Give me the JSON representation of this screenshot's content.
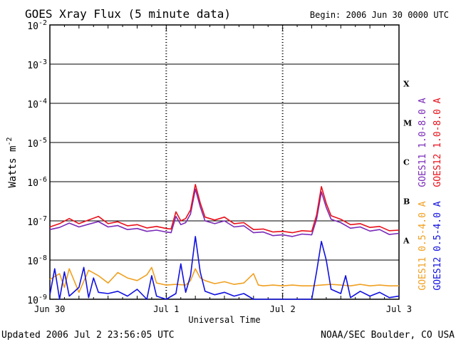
{
  "chart_data": {
    "type": "line",
    "title": "GOES Xray Flux (5 minute data)",
    "begin_label": "Begin:  2006 Jun 30 0000 UTC",
    "xlabel": "Universal Time",
    "ylabel": "Watts m",
    "ylabel_exponent": "-2",
    "yscale": "log",
    "ylim": [
      1e-09,
      0.01
    ],
    "xlim_hours": [
      0,
      72
    ],
    "x_ticks": [
      "Jun 30",
      "Jul 1",
      "Jul 2",
      "Jul 3"
    ],
    "y_ticks": [
      {
        "base": "10",
        "exp": "-2",
        "value": 0.01
      },
      {
        "base": "10",
        "exp": "-3",
        "value": 0.001
      },
      {
        "base": "10",
        "exp": "-4",
        "value": 0.0001
      },
      {
        "base": "10",
        "exp": "-5",
        "value": 1e-05
      },
      {
        "base": "10",
        "exp": "-6",
        "value": 1e-06
      },
      {
        "base": "10",
        "exp": "-7",
        "value": 1e-07
      },
      {
        "base": "10",
        "exp": "-8",
        "value": 1e-08
      },
      {
        "base": "10",
        "exp": "-9",
        "value": 1e-09
      }
    ],
    "flare_classes": [
      {
        "label": "X",
        "value": 0.000316
      },
      {
        "label": "M",
        "value": 3.16e-05
      },
      {
        "label": "C",
        "value": 3.16e-06
      },
      {
        "label": "B",
        "value": 3.16e-07
      },
      {
        "label": "A",
        "value": 3.16e-08
      }
    ],
    "grid": "horizontal lines at each decade from 1e-8 to 1e-2; vertical dotted lines at day boundaries",
    "series": [
      {
        "name": "GOES11 1.0-8.0 A",
        "color": "#7a2ab8",
        "points": [
          [
            0,
            6e-08
          ],
          [
            2,
            6.8e-08
          ],
          [
            4,
            8.8e-08
          ],
          [
            6,
            7e-08
          ],
          [
            8,
            8.2e-08
          ],
          [
            10,
            9.6e-08
          ],
          [
            12,
            7e-08
          ],
          [
            14,
            7.6e-08
          ],
          [
            16,
            6e-08
          ],
          [
            18,
            6.4e-08
          ],
          [
            20,
            5.4e-08
          ],
          [
            22,
            5.8e-08
          ],
          [
            24,
            5.2e-08
          ],
          [
            25,
            5e-08
          ],
          [
            26,
            1.3e-07
          ],
          [
            27,
            8e-08
          ],
          [
            28,
            9e-08
          ],
          [
            29,
            1.5e-07
          ],
          [
            30,
            6.5e-07
          ],
          [
            31,
            2.3e-07
          ],
          [
            32,
            1e-07
          ],
          [
            34,
            8.5e-08
          ],
          [
            36,
            1e-07
          ],
          [
            38,
            7e-08
          ],
          [
            40,
            7.5e-08
          ],
          [
            42,
            5e-08
          ],
          [
            44,
            5.2e-08
          ],
          [
            46,
            4.2e-08
          ],
          [
            48,
            4.4e-08
          ],
          [
            50,
            4e-08
          ],
          [
            52,
            4.6e-08
          ],
          [
            54,
            4.4e-08
          ],
          [
            55,
            1.1e-07
          ],
          [
            56,
            5.5e-07
          ],
          [
            57,
            2.2e-07
          ],
          [
            58,
            1.1e-07
          ],
          [
            60,
            9e-08
          ],
          [
            62,
            6.5e-08
          ],
          [
            64,
            7e-08
          ],
          [
            66,
            5.5e-08
          ],
          [
            68,
            6e-08
          ],
          [
            70,
            4.5e-08
          ],
          [
            72,
            4.8e-08
          ]
        ]
      },
      {
        "name": "GOES12 1.0-8.0 A",
        "color": "#e8101a",
        "points": [
          [
            0,
            7e-08
          ],
          [
            2,
            8.5e-08
          ],
          [
            4,
            1.15e-07
          ],
          [
            6,
            8.5e-08
          ],
          [
            8,
            1.05e-07
          ],
          [
            10,
            1.3e-07
          ],
          [
            12,
            8.5e-08
          ],
          [
            14,
            9.5e-08
          ],
          [
            16,
            7.5e-08
          ],
          [
            18,
            8e-08
          ],
          [
            20,
            6.6e-08
          ],
          [
            22,
            7.2e-08
          ],
          [
            24,
            6.4e-08
          ],
          [
            25,
            6.2e-08
          ],
          [
            26,
            1.7e-07
          ],
          [
            27,
            1e-07
          ],
          [
            28,
            1.15e-07
          ],
          [
            29,
            1.9e-07
          ],
          [
            30,
            8.5e-07
          ],
          [
            31,
            2.9e-07
          ],
          [
            32,
            1.25e-07
          ],
          [
            34,
            1.05e-07
          ],
          [
            36,
            1.25e-07
          ],
          [
            38,
            8.5e-08
          ],
          [
            40,
            9e-08
          ],
          [
            42,
            6e-08
          ],
          [
            44,
            6.2e-08
          ],
          [
            46,
            5.2e-08
          ],
          [
            48,
            5.4e-08
          ],
          [
            50,
            5e-08
          ],
          [
            52,
            5.6e-08
          ],
          [
            54,
            5.4e-08
          ],
          [
            55,
            1.4e-07
          ],
          [
            56,
            7.5e-07
          ],
          [
            57,
            2.8e-07
          ],
          [
            58,
            1.35e-07
          ],
          [
            60,
            1.1e-07
          ],
          [
            62,
            8e-08
          ],
          [
            64,
            8.5e-08
          ],
          [
            66,
            6.8e-08
          ],
          [
            68,
            7.2e-08
          ],
          [
            70,
            5.6e-08
          ],
          [
            72,
            5.8e-08
          ]
        ]
      },
      {
        "name": "GOES11 0.5-4.0 A",
        "color": "#f0a020",
        "points": [
          [
            0,
            3.2e-09
          ],
          [
            2,
            4.5e-09
          ],
          [
            3,
            2e-09
          ],
          [
            4,
            6e-09
          ],
          [
            6,
            1.5e-09
          ],
          [
            8,
            5.5e-09
          ],
          [
            10,
            4e-09
          ],
          [
            12,
            2.6e-09
          ],
          [
            14,
            4.8e-09
          ],
          [
            16,
            3.5e-09
          ],
          [
            18,
            3e-09
          ],
          [
            20,
            4.2e-09
          ],
          [
            21,
            6.5e-09
          ],
          [
            22,
            2.6e-09
          ],
          [
            24,
            2.3e-09
          ],
          [
            26,
            2.4e-09
          ],
          [
            28,
            2.3e-09
          ],
          [
            29,
            3e-09
          ],
          [
            30,
            6e-09
          ],
          [
            31,
            3.5e-09
          ],
          [
            32,
            3e-09
          ],
          [
            34,
            2.5e-09
          ],
          [
            36,
            2.8e-09
          ],
          [
            38,
            2.4e-09
          ],
          [
            40,
            2.6e-09
          ],
          [
            42,
            4.5e-09
          ],
          [
            43,
            2.3e-09
          ],
          [
            44,
            2.2e-09
          ],
          [
            46,
            2.3e-09
          ],
          [
            48,
            2.2e-09
          ],
          [
            50,
            2.3e-09
          ],
          [
            52,
            2.2e-09
          ],
          [
            54,
            2.2e-09
          ],
          [
            56,
            2.3e-09
          ],
          [
            58,
            2.4e-09
          ],
          [
            60,
            2.3e-09
          ],
          [
            62,
            2.2e-09
          ],
          [
            64,
            2.4e-09
          ],
          [
            66,
            2.2e-09
          ],
          [
            68,
            2.3e-09
          ],
          [
            70,
            2.2e-09
          ],
          [
            72,
            2.2e-09
          ]
        ]
      },
      {
        "name": "GOES12 0.5-4.0 A",
        "color": "#1010e0",
        "points": [
          [
            0,
            1.3e-09
          ],
          [
            1,
            6e-09
          ],
          [
            2,
            1e-09
          ],
          [
            3,
            5e-09
          ],
          [
            4,
            1.2e-09
          ],
          [
            6,
            2e-09
          ],
          [
            7,
            6.5e-09
          ],
          [
            8,
            1.1e-09
          ],
          [
            9,
            3.5e-09
          ],
          [
            10,
            1.5e-09
          ],
          [
            12,
            1.4e-09
          ],
          [
            14,
            1.6e-09
          ],
          [
            16,
            1.2e-09
          ],
          [
            18,
            1.8e-09
          ],
          [
            20,
            1e-09
          ],
          [
            21,
            4e-09
          ],
          [
            22,
            1.2e-09
          ],
          [
            24,
            1e-09
          ],
          [
            26,
            1.4e-09
          ],
          [
            27,
            8e-09
          ],
          [
            28,
            1.5e-09
          ],
          [
            29,
            4e-09
          ],
          [
            30,
            4e-08
          ],
          [
            31,
            5e-09
          ],
          [
            32,
            1.6e-09
          ],
          [
            34,
            1.3e-09
          ],
          [
            36,
            1.5e-09
          ],
          [
            38,
            1.2e-09
          ],
          [
            40,
            1.4e-09
          ],
          [
            42,
            1e-09
          ],
          [
            54,
            1e-09
          ],
          [
            55,
            5e-09
          ],
          [
            56,
            3e-08
          ],
          [
            57,
            1e-08
          ],
          [
            58,
            1.8e-09
          ],
          [
            60,
            1.4e-09
          ],
          [
            61,
            4e-09
          ],
          [
            62,
            1.1e-09
          ],
          [
            64,
            1.6e-09
          ],
          [
            66,
            1.2e-09
          ],
          [
            68,
            1.5e-09
          ],
          [
            70,
            1.1e-09
          ],
          [
            72,
            1.2e-09
          ]
        ]
      }
    ]
  },
  "footer": {
    "updated": "Updated 2006 Jul  2 23:56:05 UTC",
    "credit": "NOAA/SEC Boulder, CO USA"
  }
}
